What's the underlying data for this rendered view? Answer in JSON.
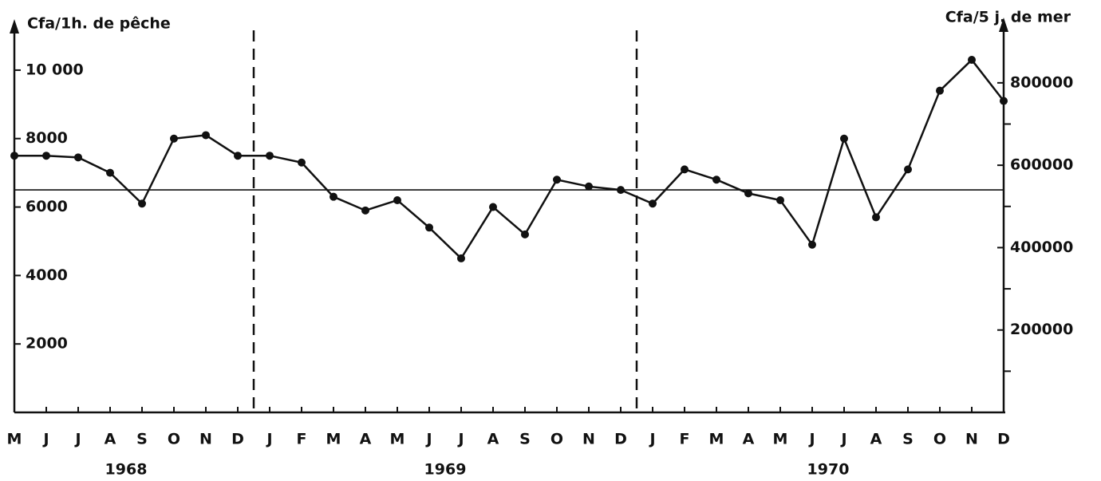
{
  "chart_data": {
    "type": "line",
    "y_label": "Cfa/1h. de pêche",
    "y2_label": "Cfa/5 j. de mer",
    "categories": [
      "M",
      "J",
      "J",
      "A",
      "S",
      "O",
      "N",
      "D",
      "J",
      "F",
      "M",
      "A",
      "M",
      "J",
      "J",
      "A",
      "S",
      "O",
      "N",
      "D",
      "J",
      "F",
      "M",
      "A",
      "M",
      "J",
      "J",
      "A",
      "S",
      "O",
      "N",
      "D"
    ],
    "years": [
      "1968",
      "1969",
      "1970"
    ],
    "values": [
      7500,
      7500,
      7450,
      7000,
      6100,
      8000,
      8100,
      7500,
      7500,
      7300,
      6300,
      5900,
      6200,
      5400,
      4500,
      6000,
      5200,
      6800,
      6600,
      6500,
      6100,
      7100,
      6800,
      6400,
      6200,
      4900,
      8000,
      5700,
      7100,
      9400,
      10300,
      9100
    ],
    "color": "#111111",
    "reference_line": 6500,
    "ylim": [
      0,
      11350
    ],
    "yticks": [
      {
        "value": 2000,
        "label": "2000"
      },
      {
        "value": 4000,
        "label": "4000"
      },
      {
        "value": 6000,
        "label": "6000"
      },
      {
        "value": 8000,
        "label": "8000"
      },
      {
        "value": 10000,
        "label": "10 000"
      }
    ],
    "y2lim": [
      0,
      943000
    ],
    "y2ticks": [
      200000,
      400000,
      600000,
      800000
    ],
    "y2minor_ticks": [
      100000,
      300000,
      500000,
      700000
    ]
  }
}
